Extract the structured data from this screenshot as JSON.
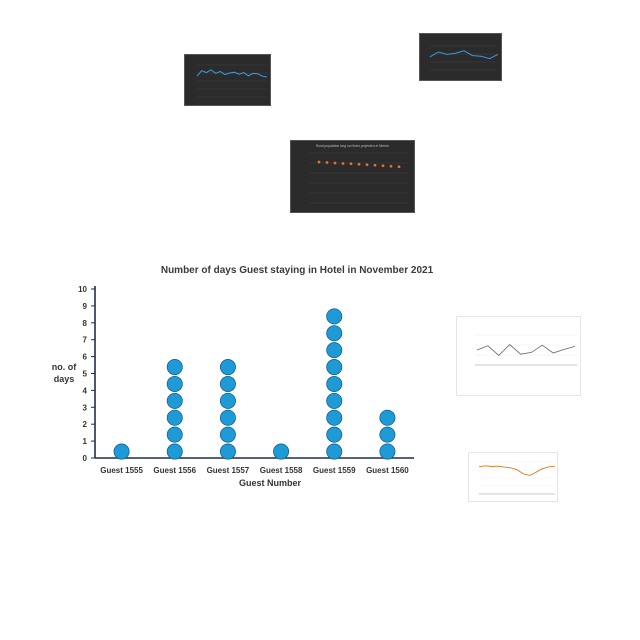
{
  "chart_data": [
    {
      "type": "scatter",
      "title": "Number of days Guest staying in Hotel in November 2021",
      "xlabel": "Guest Number",
      "ylabel": "no. of days",
      "categories": [
        "Guest 1555",
        "Guest 1556",
        "Guest 1557",
        "Guest 1558",
        "Guest 1559",
        "Guest 1560"
      ],
      "values": [
        1,
        6,
        6,
        1,
        9,
        3
      ],
      "ylim": [
        0,
        10
      ],
      "yticks": [
        "0",
        "1",
        "2",
        "3",
        "4",
        "5",
        "6",
        "7",
        "8",
        "9",
        "10"
      ],
      "marker_color": "#1e9ad6",
      "axis_color": "#1f2d4d",
      "legend": "none",
      "grid": false
    },
    {
      "type": "line",
      "title": "",
      "series": [
        {
          "values": [
            5.2,
            6.6,
            6.1,
            6.8,
            5.9,
            6.4,
            5.6,
            6.0,
            6.2,
            5.7,
            6.1,
            5.3,
            5.9,
            5.8,
            5.2,
            5.0
          ]
        }
      ],
      "line_color": "#3aa0d8",
      "grid": true
    },
    {
      "type": "line",
      "title": "",
      "series": [
        {
          "values": [
            4.2,
            5.0,
            4.6,
            4.8,
            5.2,
            4.4,
            4.3,
            3.9,
            4.6
          ]
        }
      ],
      "line_color": "#3a9be0",
      "grid": true
    },
    {
      "type": "scatter",
      "title": "Rural population long run fixers projection in Mexico",
      "series": [
        {
          "values": [
            8.2,
            8.1,
            8.0,
            7.9,
            7.85,
            7.75,
            7.65,
            7.55,
            7.45,
            7.35,
            7.25
          ]
        }
      ],
      "marker_color": "#e8722a",
      "grid": true
    },
    {
      "type": "line",
      "title": "",
      "series": [
        {
          "values": [
            5.5,
            6.2,
            4.6,
            6.4,
            4.8,
            5.1,
            6.3,
            5.0,
            5.6,
            6.1
          ]
        }
      ],
      "line_color": "#666666",
      "grid": true
    },
    {
      "type": "line",
      "title": "",
      "series": [
        {
          "values": [
            8.5,
            8.8,
            8.6,
            8.7,
            8.4,
            8.2,
            7.6,
            6.3,
            5.8,
            6.8,
            7.9,
            8.5,
            8.7
          ]
        }
      ],
      "line_color": "#e07b27",
      "grid": true
    }
  ]
}
